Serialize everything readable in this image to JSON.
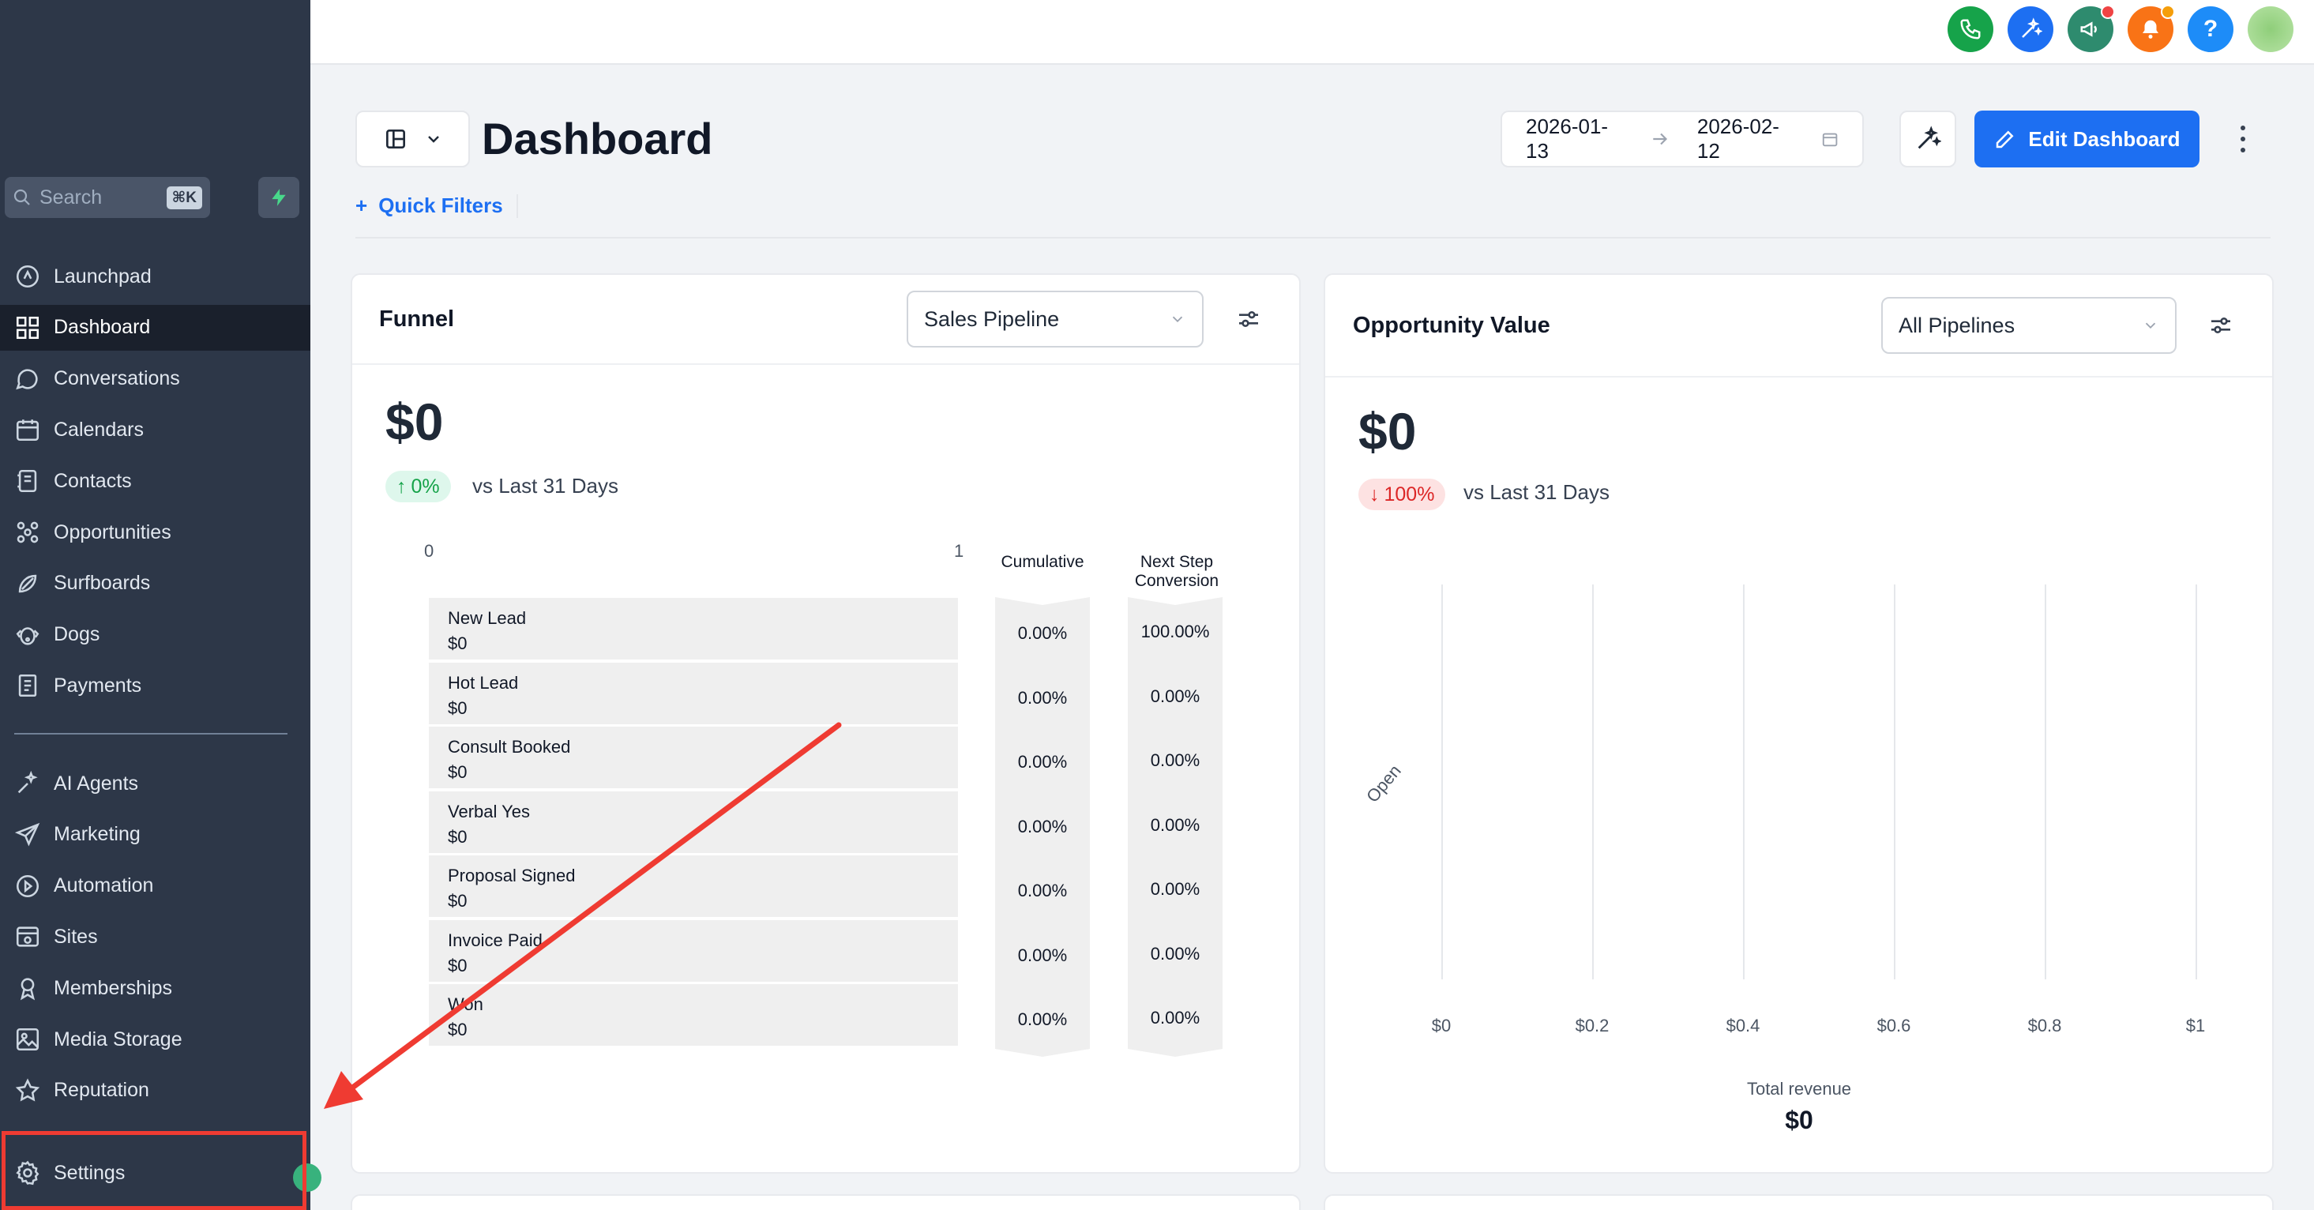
{
  "sidebar": {
    "search_placeholder": "Search",
    "search_shortcut": "⌘K",
    "items": [
      {
        "label": "Launchpad",
        "icon": "launchpad-icon"
      },
      {
        "label": "Dashboard",
        "icon": "dashboard-icon",
        "active": true
      },
      {
        "label": "Conversations",
        "icon": "chat-icon"
      },
      {
        "label": "Calendars",
        "icon": "calendar-icon"
      },
      {
        "label": "Contacts",
        "icon": "contacts-icon"
      },
      {
        "label": "Opportunities",
        "icon": "opportunities-icon"
      },
      {
        "label": "Surfboards",
        "icon": "surfboard-icon"
      },
      {
        "label": "Dogs",
        "icon": "dog-icon"
      },
      {
        "label": "Payments",
        "icon": "payments-icon"
      }
    ],
    "items2": [
      {
        "label": "AI Agents",
        "icon": "sparkle-icon"
      },
      {
        "label": "Marketing",
        "icon": "send-icon"
      },
      {
        "label": "Automation",
        "icon": "automation-icon"
      },
      {
        "label": "Sites",
        "icon": "sites-icon"
      },
      {
        "label": "Memberships",
        "icon": "membership-icon"
      },
      {
        "label": "Media Storage",
        "icon": "media-icon"
      },
      {
        "label": "Reputation",
        "icon": "star-icon"
      }
    ],
    "settings_label": "Settings"
  },
  "header": {
    "title": "Dashboard",
    "date_start": "2026-01-13",
    "date_end": "2026-02-12",
    "edit_label": "Edit Dashboard",
    "quick_filters_label": "Quick Filters"
  },
  "topbar_colors": {
    "phone": "#16a34a",
    "magic": "#1d6ff2",
    "megaphone": "#2e8b6e",
    "bell": "#f97316",
    "help": "#1d8cf8"
  },
  "funnel": {
    "title": "Funnel",
    "pipeline": "Sales Pipeline",
    "value": "$0",
    "change": "0%",
    "vs_text": "vs Last 31 Days",
    "axis_min": "0",
    "axis_max": "1",
    "col_cumulative": "Cumulative",
    "col_next_1": "Next Step",
    "col_next_2": "Conversion",
    "stages": [
      {
        "name": "New Lead",
        "value": "$0",
        "cumulative": "0.00%",
        "next": "100.00%"
      },
      {
        "name": "Hot Lead",
        "value": "$0",
        "cumulative": "0.00%",
        "next": "0.00%"
      },
      {
        "name": "Consult Booked",
        "value": "$0",
        "cumulative": "0.00%",
        "next": "0.00%"
      },
      {
        "name": "Verbal Yes",
        "value": "$0",
        "cumulative": "0.00%",
        "next": "0.00%"
      },
      {
        "name": "Proposal Signed",
        "value": "$0",
        "cumulative": "0.00%",
        "next": "0.00%"
      },
      {
        "name": "Invoice Paid",
        "value": "$0",
        "cumulative": "0.00%",
        "next": "0.00%"
      },
      {
        "name": "Won",
        "value": "$0",
        "cumulative": "0.00%",
        "next": "0.00%"
      }
    ]
  },
  "opportunity": {
    "title": "Opportunity Value",
    "pipeline": "All Pipelines",
    "value": "$0",
    "change": "100%",
    "vs_text": "vs Last 31 Days",
    "total_label": "Total revenue",
    "total_value": "$0"
  },
  "chart_data": {
    "type": "bar",
    "categories": [
      "Open"
    ],
    "values": [
      0
    ],
    "xticks": [
      "$0",
      "$0.2",
      "$0.4",
      "$0.6",
      "$0.8",
      "$1"
    ],
    "xlim": [
      0,
      1
    ],
    "orientation": "horizontal",
    "grid": true
  },
  "annotation": {
    "color": "#ef3b32"
  }
}
